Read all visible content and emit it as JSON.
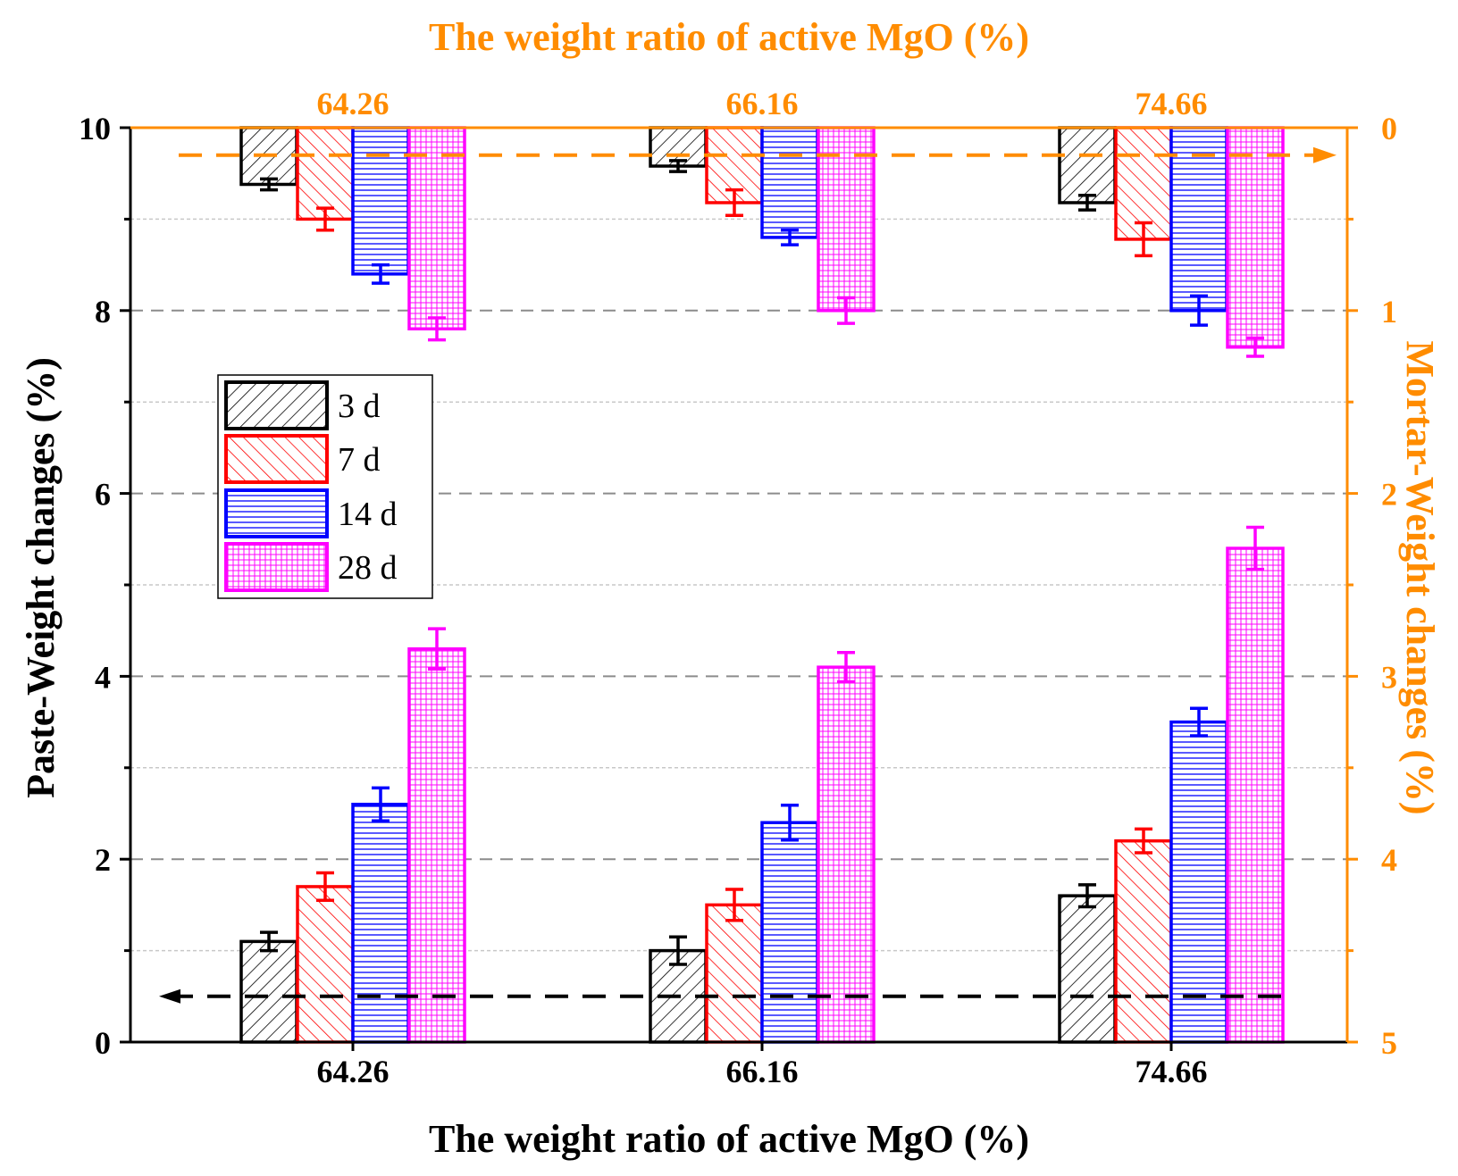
{
  "colors": {
    "left_axis": "#000000",
    "right_axis": "#ff8c00",
    "grid_major": "#8c8c8c",
    "grid_minor": "#c8c8c8",
    "paste_arrow": "#000000",
    "mortar_arrow": "#ff8c00"
  },
  "chart_data": {
    "type": "bar",
    "title": "",
    "xlabel": "The weight ratio of active MgO (%)",
    "top_xlabel": "The weight ratio of active MgO (%)",
    "ylabel_left": "Paste-Weight changes (%)",
    "ylabel_right": "Mortar-Weight changes (%)",
    "categories": [
      "64.26",
      "66.16",
      "74.66"
    ],
    "top_categories": [
      "64.26",
      "66.16",
      "74.66"
    ],
    "ylim_left": [
      0,
      10
    ],
    "ylim_right": [
      0,
      5
    ],
    "right_axis_inverted": true,
    "left_ticks": [
      "0",
      "2",
      "4",
      "6",
      "8",
      "10"
    ],
    "right_ticks": [
      "0",
      "1",
      "2",
      "3",
      "4",
      "5"
    ],
    "legend_position": "upper-left",
    "series": [
      {
        "name": "3 d",
        "color": "#000000",
        "hatch": "diagonal-forward",
        "paste_values": [
          1.1,
          1.0,
          1.6
        ],
        "paste_errors": [
          0.1,
          0.15,
          0.12
        ],
        "mortar_values": [
          0.31,
          0.21,
          0.41
        ],
        "mortar_errors": [
          0.03,
          0.03,
          0.04
        ]
      },
      {
        "name": "7 d",
        "color": "#ff0000",
        "hatch": "diagonal-back",
        "paste_values": [
          1.7,
          1.5,
          2.2
        ],
        "paste_errors": [
          0.15,
          0.17,
          0.13
        ],
        "mortar_values": [
          0.5,
          0.41,
          0.61
        ],
        "mortar_errors": [
          0.06,
          0.07,
          0.09
        ]
      },
      {
        "name": "14 d",
        "color": "#0000ff",
        "hatch": "horizontal",
        "paste_values": [
          2.6,
          2.4,
          3.5
        ],
        "paste_errors": [
          0.18,
          0.19,
          0.15
        ],
        "mortar_values": [
          0.8,
          0.6,
          1.0
        ],
        "mortar_errors": [
          0.05,
          0.04,
          0.08
        ]
      },
      {
        "name": "28 d",
        "color": "#ff00ff",
        "hatch": "grid",
        "paste_values": [
          4.3,
          4.1,
          5.4
        ],
        "paste_errors": [
          0.22,
          0.16,
          0.23
        ],
        "mortar_values": [
          1.1,
          1.0,
          1.2
        ],
        "mortar_errors": [
          0.06,
          0.07,
          0.05
        ]
      }
    ]
  }
}
